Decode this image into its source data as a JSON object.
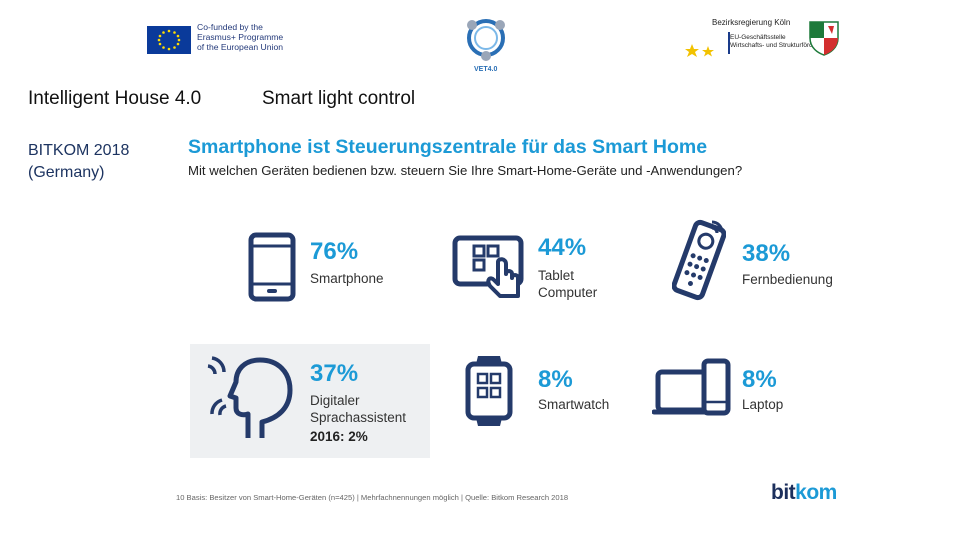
{
  "header": {
    "eu_text": "Co-funded by the\nErasmus+ Programme\nof the European Union",
    "veta_text": "VET4.0",
    "bez_title": "Bezirksregierung Köln",
    "bez_sub": "EU-Geschäftsstelle\nWirtschafts- und Strukturförderung"
  },
  "slide": {
    "title_left": "Intelligent House 4.0",
    "title_right": "Smart light control",
    "source": "BITKOM 2018\n(Germany)"
  },
  "infographic": {
    "title": "Smartphone ist Steuerungszentrale für das Smart Home",
    "subtitle": "Mit welchen Geräten bedienen bzw. steuern Sie Ihre Smart-Home-Geräte und -Anwendungen?",
    "items": [
      {
        "pct": "76%",
        "label": "Smartphone"
      },
      {
        "pct": "44%",
        "label": "Tablet\nComputer"
      },
      {
        "pct": "38%",
        "label": "Fernbedienung"
      },
      {
        "pct": "37%",
        "label": "Digitaler\nSprachassistent",
        "note": "2016: 2%"
      },
      {
        "pct": "8%",
        "label": "Smartwatch"
      },
      {
        "pct": "8%",
        "label": "Laptop"
      }
    ],
    "footnote": "10 Basis: Besitzer von Smart-Home-Geräten (n=425) | Mehrfachnennungen möglich | Quelle: Bitkom Research 2018",
    "brand_a": "bit",
    "brand_b": "kom"
  },
  "colors": {
    "accent": "#1c9ad6",
    "icon": "#243a6a",
    "panel": "#eef0f2"
  },
  "icons": [
    "eu-flag-icon",
    "veta-logo-icon",
    "nrw-crest-icon",
    "smartphone-icon",
    "tablet-touch-icon",
    "remote-icon",
    "voice-head-icon",
    "smartwatch-icon",
    "laptop-phone-icon"
  ]
}
